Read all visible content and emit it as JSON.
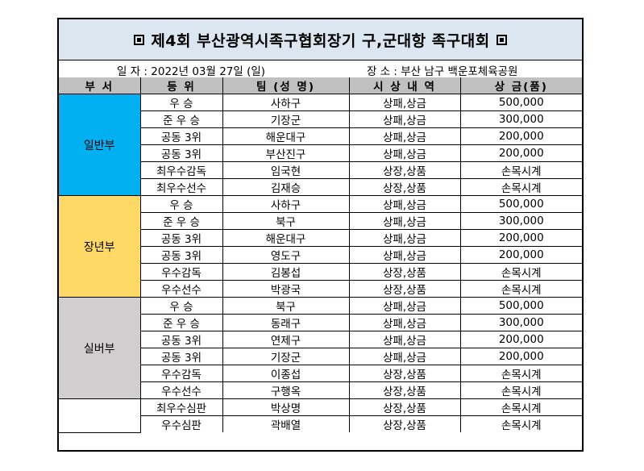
{
  "title": "제4회 부산광역시족구협회장기 구,군대항 족구대회",
  "info": {
    "date_label": "일  자 : 2022년 03월 27일 (일)",
    "place_label": "장   소  : 부산 남구 백운포체육공원"
  },
  "headers": [
    "부   서",
    "등   위",
    "팀 (성 명)",
    "시 상 내 역",
    "상 금(품)"
  ],
  "divisions": [
    {
      "name": "일반부",
      "color": "#00b0f0",
      "rows": [
        [
          "우      승",
          "사하구",
          "상패,상금",
          "500,000"
        ],
        [
          "준 우 승",
          "기장군",
          "상패,상금",
          "300,000"
        ],
        [
          "공동 3위",
          "해운대구",
          "상패,상금",
          "200,000"
        ],
        [
          "공동 3위",
          "부산진구",
          "상패,상금",
          "200,000"
        ],
        [
          "최우수감독",
          "임국현",
          "상장,상품",
          "손목시계"
        ],
        [
          "최우수선수",
          "김재승",
          "상장,상품",
          "손목시계"
        ]
      ]
    },
    {
      "name": "장년부",
      "color": "#ffd966",
      "rows": [
        [
          "우      승",
          "사하구",
          "상패,상금",
          "500,000"
        ],
        [
          "준 우 승",
          "북구",
          "상패,상금",
          "300,000"
        ],
        [
          "공동 3위",
          "해운대구",
          "상패,상금",
          "200,000"
        ],
        [
          "공동 3위",
          "영도구",
          "상패,상금",
          "200,000"
        ],
        [
          "우수감독",
          "김봉섭",
          "상장,상품",
          "손목시계"
        ],
        [
          "우수선수",
          "박광국",
          "상장,상품",
          "손목시계"
        ]
      ]
    },
    {
      "name": "실버부",
      "color": "#d0cece",
      "rows": [
        [
          "우      승",
          "북구",
          "상패,상금",
          "500,000"
        ],
        [
          "준 우 승",
          "동래구",
          "상패,상금",
          "300,000"
        ],
        [
          "공동 3위",
          "연제구",
          "상패,상금",
          "200,000"
        ],
        [
          "공동 3위",
          "기장군",
          "상패,상금",
          "200,000"
        ],
        [
          "우수감독",
          "이종섭",
          "상장,상품",
          "손목시계"
        ],
        [
          "우수선수",
          "구행옥",
          "상장,상품",
          "손목시계"
        ]
      ]
    },
    {
      "name": "",
      "color": "#ffffff",
      "rows": [
        [
          "최우수심판",
          "박상명",
          "상장,상품",
          "손목시계"
        ],
        [
          "우수심판",
          "곽배열",
          "상장,상품",
          "손목시계"
        ]
      ]
    }
  ]
}
